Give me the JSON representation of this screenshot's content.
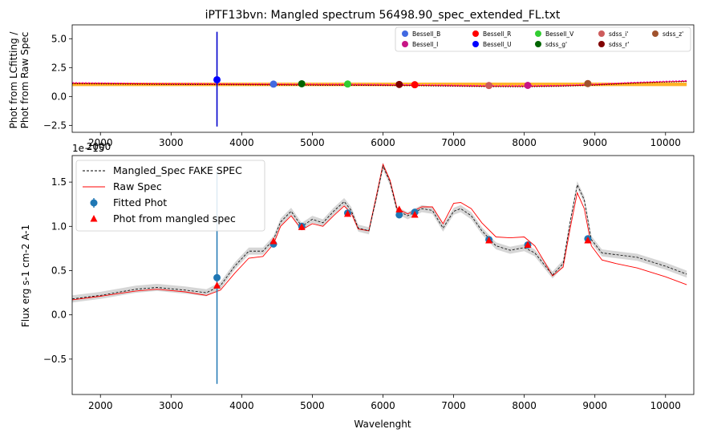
{
  "chart_data": [
    {
      "type": "scatter",
      "title": "iPTF13bvn: Mangled spectrum 56498.90_spec_extended_FL.txt",
      "xlabel": "",
      "ylabel_lines": [
        "Phot from LCfitting /",
        "Phot from Raw Spec"
      ],
      "xlim": [
        1600,
        10400
      ],
      "ylim": [
        -3.1,
        6.2
      ],
      "xticks": [
        2000,
        3000,
        4000,
        5000,
        6000,
        7000,
        8000,
        9000,
        10000
      ],
      "yticks": [
        -2.5,
        0.0,
        2.5,
        5.0
      ],
      "ytick_labels": [
        "−2.5",
        "0.0",
        "2.5",
        "5.0"
      ],
      "grid": false,
      "legend_position": "top-right",
      "legend_columns": 5,
      "ratio_curve": {
        "x": [
          1600,
          2000,
          2500,
          3000,
          3500,
          4000,
          4500,
          5000,
          5500,
          6000,
          6500,
          7000,
          7500,
          8000,
          8500,
          9000,
          9500,
          10000,
          10300
        ],
        "y": [
          1.2,
          1.18,
          1.15,
          1.13,
          1.12,
          1.1,
          1.08,
          1.07,
          1.06,
          1.04,
          1.02,
          0.98,
          0.94,
          0.93,
          0.97,
          1.07,
          1.22,
          1.33,
          1.38
        ]
      },
      "band": {
        "y_low": 0.9,
        "y_high": 1.2
      },
      "error_bar": {
        "x": 3650,
        "y_low": -2.6,
        "y_high": 5.6,
        "color": "#0000cc"
      },
      "series": [
        {
          "name": "Bessell_B",
          "color": "#4169e1",
          "x": [
            4450
          ],
          "y": [
            1.07
          ]
        },
        {
          "name": "Bessell_I",
          "color": "#c71585",
          "x": [
            8050
          ],
          "y": [
            0.96
          ]
        },
        {
          "name": "Bessell_R",
          "color": "#ff0000",
          "x": [
            6450
          ],
          "y": [
            1.02
          ]
        },
        {
          "name": "Bessell_U",
          "color": "#0000ff",
          "x": [
            3650
          ],
          "y": [
            1.45
          ]
        },
        {
          "name": "Bessell_V",
          "color": "#32cd32",
          "x": [
            5500
          ],
          "y": [
            1.08
          ]
        },
        {
          "name": "sdss_g'",
          "color": "#006400",
          "x": [
            4850
          ],
          "y": [
            1.1
          ]
        },
        {
          "name": "sdss_i'",
          "color": "#cd5c5c",
          "x": [
            7500
          ],
          "y": [
            0.95
          ]
        },
        {
          "name": "sdss_r'",
          "color": "#800000",
          "x": [
            6230
          ],
          "y": [
            1.04
          ]
        },
        {
          "name": "sdss_z'",
          "color": "#a0522d",
          "x": [
            8900
          ],
          "y": [
            1.12
          ]
        }
      ]
    },
    {
      "type": "line",
      "title": "",
      "xlabel": "Wavelenght",
      "ylabel": "Flux erg s-1 cm-2 A-1",
      "offset_label": "1e−15",
      "overlap_tick_label": "2000",
      "xlim": [
        1600,
        10400
      ],
      "ylim": [
        -0.9,
        1.8
      ],
      "xticks": [
        2000,
        3000,
        4000,
        5000,
        6000,
        7000,
        8000,
        9000,
        10000
      ],
      "yticks": [
        -0.5,
        0.0,
        0.5,
        1.0,
        1.5
      ],
      "ytick_labels": [
        "−0.5",
        "0.0",
        "0.5",
        "1.0",
        "1.5"
      ],
      "grid": false,
      "legend_position": "top-left",
      "legend": [
        {
          "label": "Mangled_Spec FAKE SPEC",
          "style": "dashed",
          "color": "#000000"
        },
        {
          "label": "Raw Spec",
          "style": "line",
          "color": "#ff0000"
        },
        {
          "label": "Fitted Phot",
          "style": "errorbar-marker",
          "color": "#1f77b4"
        },
        {
          "label": "Phot from mangled spec",
          "style": "triangle",
          "color": "#ff0000"
        }
      ],
      "mangled_spec": {
        "name": "Mangled_Spec FAKE SPEC",
        "color": "#000000",
        "x": [
          1600,
          2000,
          2500,
          2800,
          3200,
          3500,
          3700,
          3900,
          4100,
          4300,
          4450,
          4550,
          4700,
          4850,
          5000,
          5150,
          5300,
          5450,
          5550,
          5650,
          5800,
          5900,
          6000,
          6100,
          6200,
          6350,
          6550,
          6700,
          6850,
          7000,
          7100,
          7250,
          7400,
          7600,
          7800,
          8000,
          8150,
          8300,
          8400,
          8550,
          8650,
          8750,
          8850,
          8950,
          9100,
          9300,
          9600,
          10000,
          10300
        ],
        "y": [
          0.18,
          0.22,
          0.29,
          0.31,
          0.28,
          0.25,
          0.33,
          0.55,
          0.72,
          0.72,
          0.85,
          1.05,
          1.17,
          1.0,
          1.08,
          1.04,
          1.17,
          1.28,
          1.18,
          0.98,
          0.95,
          1.3,
          1.68,
          1.5,
          1.18,
          1.12,
          1.2,
          1.18,
          0.98,
          1.17,
          1.2,
          1.12,
          0.95,
          0.78,
          0.73,
          0.76,
          0.7,
          0.55,
          0.45,
          0.58,
          1.05,
          1.47,
          1.3,
          0.85,
          0.7,
          0.68,
          0.65,
          0.55,
          0.46
        ],
        "uncertainty": 0.04
      },
      "raw_spec": {
        "name": "Raw Spec",
        "color": "#ff0000",
        "x": [
          1600,
          2000,
          2500,
          2800,
          3200,
          3500,
          3700,
          3900,
          4100,
          4300,
          4450,
          4550,
          4700,
          4850,
          5000,
          5150,
          5300,
          5450,
          5550,
          5650,
          5800,
          5900,
          6000,
          6100,
          6200,
          6350,
          6550,
          6700,
          6850,
          7000,
          7100,
          7250,
          7400,
          7600,
          7800,
          8000,
          8150,
          8300,
          8400,
          8550,
          8650,
          8750,
          8850,
          8950,
          9100,
          9300,
          9600,
          10000,
          10300
        ],
        "y": [
          0.17,
          0.21,
          0.27,
          0.29,
          0.26,
          0.22,
          0.28,
          0.47,
          0.64,
          0.66,
          0.8,
          1.0,
          1.12,
          0.96,
          1.03,
          1.0,
          1.12,
          1.23,
          1.15,
          0.97,
          0.95,
          1.32,
          1.7,
          1.52,
          1.2,
          1.14,
          1.22,
          1.22,
          1.03,
          1.26,
          1.27,
          1.2,
          1.04,
          0.88,
          0.87,
          0.88,
          0.78,
          0.58,
          0.44,
          0.54,
          0.98,
          1.38,
          1.2,
          0.78,
          0.62,
          0.58,
          0.53,
          0.43,
          0.34
        ]
      },
      "fitted_phot": {
        "name": "Fitted Phot",
        "color": "#1f77b4",
        "x": [
          3650,
          4450,
          4850,
          5500,
          6230,
          6450,
          7500,
          8050,
          8900
        ],
        "y": [
          0.42,
          0.8,
          1.0,
          1.15,
          1.13,
          1.16,
          0.85,
          0.79,
          0.86
        ],
        "err": [
          1.2,
          0.02,
          0.02,
          0.02,
          0.02,
          0.02,
          0.02,
          0.02,
          0.02
        ]
      },
      "phot_mangled": {
        "name": "Phot from mangled spec",
        "color": "#ff0000",
        "x": [
          3650,
          4450,
          4850,
          5500,
          6230,
          6450,
          7500,
          8050,
          8900
        ],
        "y": [
          0.33,
          0.83,
          0.99,
          1.14,
          1.19,
          1.13,
          0.84,
          0.79,
          0.84
        ]
      }
    }
  ]
}
